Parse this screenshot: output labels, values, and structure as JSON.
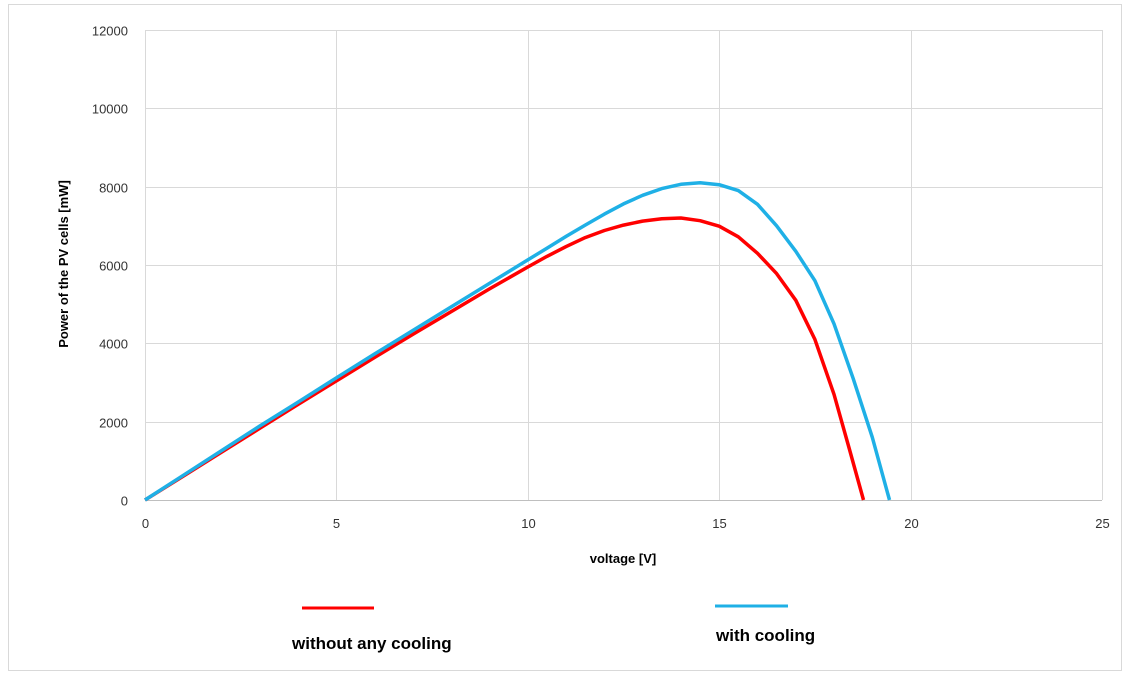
{
  "chart_data": {
    "type": "line",
    "title": "",
    "xlabel": "voltage [V]",
    "ylabel": "Power of the PV cells [mW]",
    "xlim": [
      0,
      25
    ],
    "ylim": [
      0,
      12000
    ],
    "x_ticks": [
      0,
      5,
      10,
      15,
      20,
      25
    ],
    "y_ticks": [
      0,
      2000,
      4000,
      6000,
      8000,
      10000,
      12000
    ],
    "x_tick_labels": [
      "0",
      "5",
      "10",
      "15",
      "20",
      "25"
    ],
    "y_tick_labels": [
      "0",
      "2000",
      "4000",
      "6000",
      "8000",
      "10000",
      "12000"
    ],
    "grid": true,
    "legend_position": "bottom",
    "series": [
      {
        "name": "without any cooling",
        "color": "#ff0000",
        "points": [
          [
            0,
            0
          ],
          [
            1,
            610
          ],
          [
            2,
            1220
          ],
          [
            3,
            1830
          ],
          [
            4,
            2440
          ],
          [
            5,
            3040
          ],
          [
            6,
            3640
          ],
          [
            7,
            4230
          ],
          [
            8,
            4810
          ],
          [
            9,
            5390
          ],
          [
            10,
            5950
          ],
          [
            10.5,
            6220
          ],
          [
            11,
            6470
          ],
          [
            11.5,
            6700
          ],
          [
            12,
            6880
          ],
          [
            12.5,
            7020
          ],
          [
            13,
            7120
          ],
          [
            13.5,
            7180
          ],
          [
            14,
            7200
          ],
          [
            14.5,
            7130
          ],
          [
            15,
            6990
          ],
          [
            15.5,
            6720
          ],
          [
            16,
            6300
          ],
          [
            16.5,
            5780
          ],
          [
            17,
            5100
          ],
          [
            17.5,
            4100
          ],
          [
            18,
            2700
          ],
          [
            18.4,
            1300
          ],
          [
            18.77,
            0
          ]
        ]
      },
      {
        "name": "with cooling",
        "color": "#1fb0e6",
        "points": [
          [
            0,
            0
          ],
          [
            1,
            630
          ],
          [
            2,
            1260
          ],
          [
            3,
            1890
          ],
          [
            4,
            2500
          ],
          [
            5,
            3120
          ],
          [
            6,
            3730
          ],
          [
            7,
            4330
          ],
          [
            8,
            4930
          ],
          [
            9,
            5530
          ],
          [
            10,
            6130
          ],
          [
            10.5,
            6430
          ],
          [
            11,
            6730
          ],
          [
            11.5,
            7020
          ],
          [
            12,
            7300
          ],
          [
            12.5,
            7560
          ],
          [
            13,
            7780
          ],
          [
            13.5,
            7950
          ],
          [
            14,
            8060
          ],
          [
            14.5,
            8100
          ],
          [
            15,
            8050
          ],
          [
            15.5,
            7900
          ],
          [
            16,
            7550
          ],
          [
            16.5,
            7000
          ],
          [
            17,
            6350
          ],
          [
            17.5,
            5600
          ],
          [
            18,
            4500
          ],
          [
            18.5,
            3100
          ],
          [
            19,
            1600
          ],
          [
            19.45,
            0
          ]
        ]
      }
    ]
  }
}
